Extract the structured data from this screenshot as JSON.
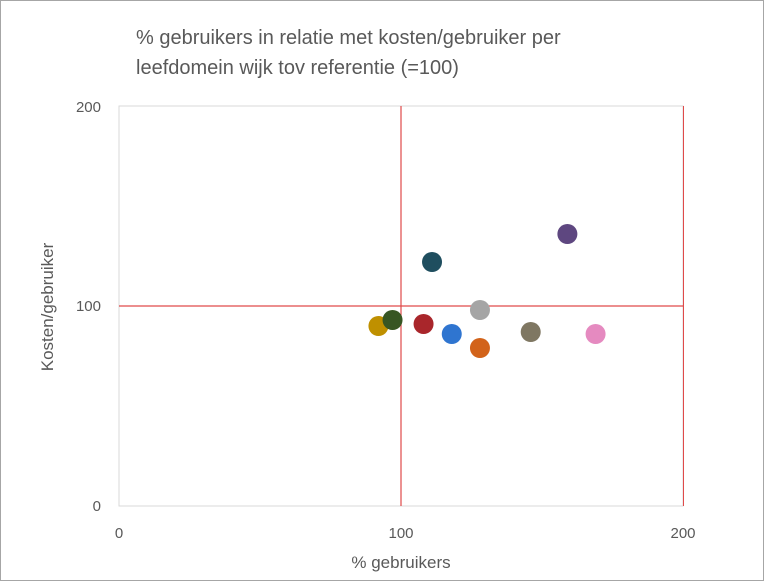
{
  "chart_data": {
    "type": "scatter",
    "title": "% gebruikers in relatie met kosten/gebruiker per\nleefdomein wijk tov referentie (=100)",
    "xlabel": "% gebruikers",
    "ylabel": "Kosten/gebruiker",
    "xlim": [
      0,
      200
    ],
    "ylim": [
      0,
      200
    ],
    "xticks": [
      "0",
      "100",
      "200"
    ],
    "yticks": [
      "0",
      "100",
      "200"
    ],
    "reference_lines": {
      "x": 100,
      "y": 100,
      "color": "#e04a4a"
    },
    "grid": false,
    "legend": "none",
    "points": [
      {
        "x": 92,
        "y": 90,
        "color": "#bf9000"
      },
      {
        "x": 97,
        "y": 93,
        "color": "#375623"
      },
      {
        "x": 108,
        "y": 91,
        "color": "#a9262b"
      },
      {
        "x": 111,
        "y": 122,
        "color": "#1f4e5f"
      },
      {
        "x": 118,
        "y": 86,
        "color": "#2f75d0"
      },
      {
        "x": 128,
        "y": 98,
        "color": "#a5a5a5"
      },
      {
        "x": 128,
        "y": 79,
        "color": "#d2631a"
      },
      {
        "x": 146,
        "y": 87,
        "color": "#7f7762"
      },
      {
        "x": 159,
        "y": 136,
        "color": "#5e4780"
      },
      {
        "x": 169,
        "y": 86,
        "color": "#e58ac0"
      }
    ]
  }
}
